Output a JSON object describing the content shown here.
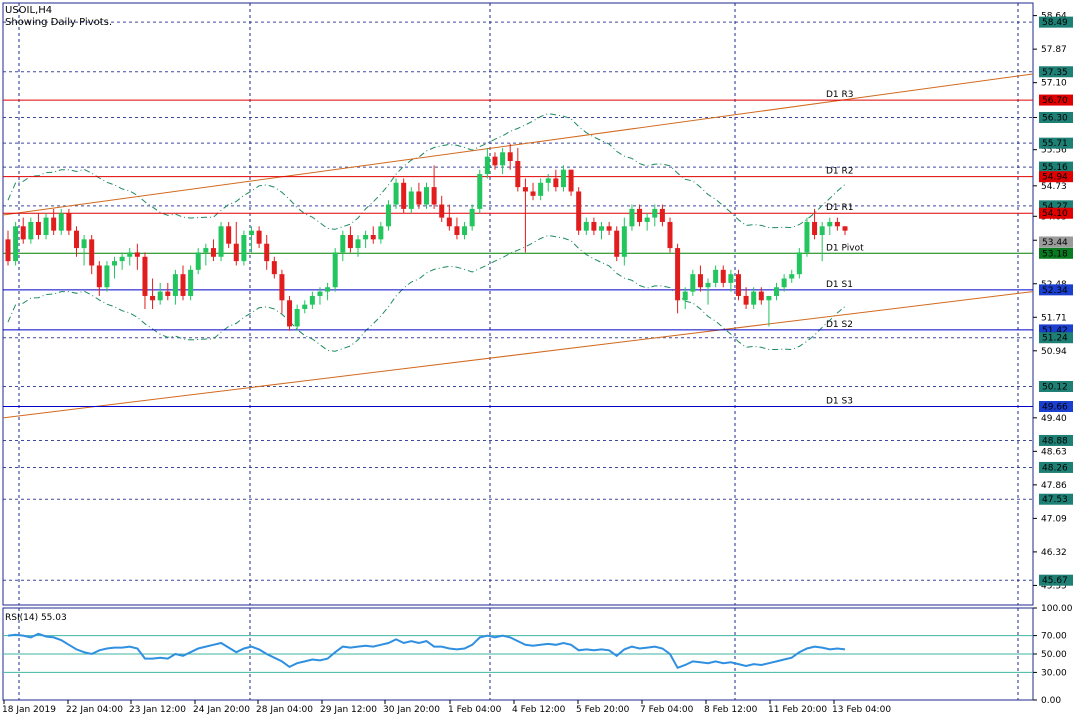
{
  "header": {
    "symbol": "USOIL,H4",
    "subtitle": "Showing Daily Pivots."
  },
  "colors": {
    "bull": "#22c55e",
    "bear": "#e11d1d",
    "grid": "#1e2a8c",
    "frame": "#1e2a8c",
    "pivot_red": "#e00000",
    "pivot_blue": "#0000cc",
    "pivot_green": "#008000",
    "trend": "#d2691e",
    "band": "#1e8a5e",
    "rsi_line": "#2f8fe0",
    "rsi_level": "#3fb4a4",
    "tag_teal": "#1e7f74",
    "tag_red": "#e00000",
    "tag_blue": "#1a3fcf",
    "tag_green": "#0a7a20"
  },
  "chart_data": {
    "type": "candlestick",
    "price_axis_ticks": [
      "58.64",
      "57.87",
      "57.10",
      "56.30",
      "55.56",
      "54.73",
      "54.03",
      "53.48",
      "52.48",
      "51.71",
      "50.94",
      "49.40",
      "48.63",
      "47.86",
      "47.09",
      "46.32",
      "45.55"
    ],
    "price_tags": [
      {
        "value": "58.49",
        "color": "teal"
      },
      {
        "value": "57.35",
        "color": "teal"
      },
      {
        "value": "56.70",
        "color": "red"
      },
      {
        "value": "56.30",
        "color": "teal"
      },
      {
        "value": "55.71",
        "color": "teal"
      },
      {
        "value": "55.16",
        "color": "teal"
      },
      {
        "value": "54.94",
        "color": "red"
      },
      {
        "value": "54.27",
        "color": "teal"
      },
      {
        "value": "54.10",
        "color": "red"
      },
      {
        "value": "53.44",
        "color": "gray"
      },
      {
        "value": "53.18",
        "color": "green"
      },
      {
        "value": "52.34",
        "color": "blue"
      },
      {
        "value": "51.42",
        "color": "blue"
      },
      {
        "value": "51.24",
        "color": "teal"
      },
      {
        "value": "50.12",
        "color": "teal"
      },
      {
        "value": "49.66",
        "color": "blue"
      },
      {
        "value": "48.88",
        "color": "teal"
      },
      {
        "value": "48.26",
        "color": "teal"
      },
      {
        "value": "47.53",
        "color": "teal"
      },
      {
        "value": "45.67",
        "color": "teal"
      }
    ],
    "pivots": [
      {
        "label": "D1 R3",
        "value": 56.7,
        "color": "red"
      },
      {
        "label": "D1 R2",
        "value": 54.94,
        "color": "red"
      },
      {
        "label": "D1 R1",
        "value": 54.1,
        "color": "red"
      },
      {
        "label": "D1 Pivot",
        "value": 53.18,
        "color": "green"
      },
      {
        "label": "D1 S1",
        "value": 52.34,
        "color": "blue"
      },
      {
        "label": "D1 S2",
        "value": 51.42,
        "color": "blue"
      },
      {
        "label": "D1 S3",
        "value": 49.66,
        "color": "blue"
      }
    ],
    "dashed_levels": [
      58.49,
      57.35,
      56.3,
      55.71,
      55.16,
      54.27,
      51.24,
      50.12,
      48.88,
      48.26,
      47.53,
      45.67
    ],
    "x_labels": [
      "18 Jan 2019",
      "22 Jan 04:00",
      "23 Jan 12:00",
      "24 Jan 20:00",
      "28 Jan 04:00",
      "29 Jan 12:00",
      "30 Jan 20:00",
      "1 Feb 04:00",
      "4 Feb 12:00",
      "5 Feb 20:00",
      "7 Feb 04:00",
      "8 Feb 12:00",
      "11 Feb 20:00",
      "13 Feb 04:00"
    ],
    "candles": [
      [
        53.5,
        53.7,
        52.9,
        53.0
      ],
      [
        53.0,
        53.9,
        52.9,
        53.8
      ],
      [
        53.8,
        54.0,
        53.4,
        53.5
      ],
      [
        53.5,
        54.0,
        53.4,
        53.9
      ],
      [
        53.9,
        54.1,
        53.5,
        53.6
      ],
      [
        53.6,
        54.1,
        53.5,
        54.0
      ],
      [
        54.0,
        54.2,
        53.6,
        53.7
      ],
      [
        53.7,
        54.2,
        53.6,
        54.1
      ],
      [
        54.1,
        54.2,
        53.6,
        53.7
      ],
      [
        53.7,
        53.8,
        53.1,
        53.3
      ],
      [
        53.3,
        53.6,
        52.9,
        53.5
      ],
      [
        53.5,
        53.6,
        52.7,
        52.9
      ],
      [
        52.9,
        53.0,
        52.2,
        52.4
      ],
      [
        52.4,
        53.0,
        52.3,
        52.9
      ],
      [
        52.9,
        53.1,
        52.6,
        53.0
      ],
      [
        53.0,
        53.2,
        52.8,
        53.1
      ],
      [
        53.1,
        53.3,
        52.9,
        53.2
      ],
      [
        53.2,
        53.4,
        52.8,
        53.1
      ],
      [
        53.1,
        53.2,
        51.9,
        52.2
      ],
      [
        52.2,
        52.6,
        51.9,
        52.1
      ],
      [
        52.1,
        52.5,
        52.0,
        52.3
      ],
      [
        52.3,
        52.5,
        52.1,
        52.2
      ],
      [
        52.2,
        52.8,
        52.0,
        52.7
      ],
      [
        52.7,
        52.9,
        52.1,
        52.2
      ],
      [
        52.2,
        52.9,
        52.1,
        52.8
      ],
      [
        52.8,
        53.3,
        52.7,
        53.2
      ],
      [
        53.2,
        53.4,
        52.9,
        53.3
      ],
      [
        53.3,
        53.5,
        53.0,
        53.1
      ],
      [
        53.1,
        53.9,
        53.0,
        53.8
      ],
      [
        53.8,
        53.9,
        53.3,
        53.4
      ],
      [
        53.4,
        53.9,
        52.9,
        53.0
      ],
      [
        53.0,
        53.7,
        52.9,
        53.6
      ],
      [
        53.6,
        53.8,
        53.2,
        53.7
      ],
      [
        53.7,
        53.8,
        53.3,
        53.4
      ],
      [
        53.4,
        53.6,
        52.8,
        53.0
      ],
      [
        53.0,
        53.1,
        52.6,
        52.7
      ],
      [
        52.7,
        52.8,
        51.8,
        52.1
      ],
      [
        52.1,
        52.2,
        51.4,
        51.5
      ],
      [
        51.5,
        52.0,
        51.4,
        51.9
      ],
      [
        51.9,
        52.1,
        51.8,
        52.0
      ],
      [
        52.0,
        52.3,
        51.9,
        52.2
      ],
      [
        52.2,
        52.4,
        52.0,
        52.3
      ],
      [
        52.3,
        52.5,
        52.1,
        52.4
      ],
      [
        52.4,
        53.3,
        52.3,
        53.2
      ],
      [
        53.2,
        53.7,
        53.0,
        53.6
      ],
      [
        53.6,
        53.8,
        53.2,
        53.3
      ],
      [
        53.3,
        53.6,
        53.1,
        53.5
      ],
      [
        53.5,
        53.7,
        53.3,
        53.6
      ],
      [
        53.6,
        53.8,
        53.4,
        53.5
      ],
      [
        53.5,
        53.9,
        53.4,
        53.8
      ],
      [
        53.8,
        54.4,
        53.7,
        54.3
      ],
      [
        54.3,
        54.9,
        54.2,
        54.8
      ],
      [
        54.8,
        54.9,
        54.1,
        54.2
      ],
      [
        54.2,
        54.7,
        54.1,
        54.6
      ],
      [
        54.6,
        54.8,
        54.2,
        54.3
      ],
      [
        54.3,
        54.8,
        54.2,
        54.7
      ],
      [
        54.7,
        55.2,
        54.2,
        54.3
      ],
      [
        54.3,
        54.5,
        53.9,
        54.0
      ],
      [
        54.0,
        54.3,
        53.7,
        53.8
      ],
      [
        53.8,
        54.0,
        53.5,
        53.6
      ],
      [
        53.6,
        53.9,
        53.5,
        53.8
      ],
      [
        53.8,
        54.3,
        53.7,
        54.2
      ],
      [
        54.2,
        55.1,
        54.1,
        55.0
      ],
      [
        55.0,
        55.6,
        54.9,
        55.4
      ],
      [
        55.4,
        55.5,
        55.1,
        55.2
      ],
      [
        55.2,
        55.6,
        55.0,
        55.5
      ],
      [
        55.5,
        55.7,
        55.1,
        55.3
      ],
      [
        55.3,
        55.6,
        54.6,
        54.7
      ],
      [
        54.7,
        54.9,
        53.2,
        54.6
      ],
      [
        54.6,
        54.8,
        54.4,
        54.5
      ],
      [
        54.5,
        54.9,
        54.4,
        54.8
      ],
      [
        54.8,
        55.0,
        54.6,
        54.9
      ],
      [
        54.9,
        55.1,
        54.6,
        54.7
      ],
      [
        54.7,
        55.2,
        54.6,
        55.1
      ],
      [
        55.1,
        55.1,
        54.5,
        54.6
      ],
      [
        54.6,
        54.7,
        53.6,
        53.7
      ],
      [
        53.7,
        54.0,
        53.6,
        53.9
      ],
      [
        53.9,
        54.0,
        53.6,
        53.7
      ],
      [
        53.7,
        53.9,
        53.5,
        53.8
      ],
      [
        53.8,
        53.9,
        53.6,
        53.7
      ],
      [
        53.7,
        53.8,
        53.0,
        53.1
      ],
      [
        53.1,
        54.0,
        52.9,
        53.8
      ],
      [
        53.8,
        54.3,
        53.7,
        54.2
      ],
      [
        54.2,
        54.3,
        53.8,
        53.9
      ],
      [
        53.9,
        54.1,
        53.7,
        54.0
      ],
      [
        54.0,
        54.3,
        53.8,
        54.2
      ],
      [
        54.2,
        54.3,
        53.8,
        53.9
      ],
      [
        53.9,
        54.0,
        53.2,
        53.3
      ],
      [
        53.3,
        53.4,
        51.8,
        52.1
      ],
      [
        52.1,
        52.4,
        51.9,
        52.3
      ],
      [
        52.3,
        52.8,
        52.2,
        52.7
      ],
      [
        52.7,
        52.9,
        52.3,
        52.4
      ],
      [
        52.4,
        52.6,
        52.0,
        52.5
      ],
      [
        52.5,
        52.9,
        52.4,
        52.8
      ],
      [
        52.8,
        52.9,
        52.4,
        52.5
      ],
      [
        52.5,
        52.8,
        52.3,
        52.7
      ],
      [
        52.7,
        52.8,
        52.1,
        52.2
      ],
      [
        52.2,
        52.4,
        51.9,
        52.0
      ],
      [
        52.0,
        52.4,
        51.9,
        52.3
      ],
      [
        52.3,
        52.4,
        52.0,
        52.1
      ],
      [
        52.1,
        52.2,
        51.5,
        52.2
      ],
      [
        52.2,
        52.5,
        52.1,
        52.4
      ],
      [
        52.4,
        52.7,
        52.3,
        52.6
      ],
      [
        52.6,
        52.8,
        52.5,
        52.7
      ],
      [
        52.7,
        53.3,
        52.6,
        53.2
      ],
      [
        53.2,
        54.0,
        53.1,
        53.9
      ],
      [
        53.9,
        54.2,
        53.5,
        53.6
      ],
      [
        53.6,
        53.9,
        53.0,
        53.8
      ],
      [
        53.8,
        54.0,
        53.6,
        53.9
      ],
      [
        53.9,
        54.0,
        53.7,
        53.8
      ],
      [
        53.8,
        53.8,
        53.6,
        53.7
      ]
    ],
    "rsi": {
      "label": "RSI(14) 55.03",
      "value": 55.03,
      "levels": [
        70,
        50,
        30
      ],
      "ticks": [
        "100.00",
        "70.00",
        "50.00",
        "30.00",
        "0.00"
      ],
      "values": [
        70,
        71,
        70,
        68,
        72,
        69,
        68,
        65,
        60,
        55,
        52,
        50,
        54,
        56,
        57,
        57,
        58,
        56,
        45,
        45,
        46,
        45,
        50,
        48,
        52,
        56,
        58,
        60,
        62,
        57,
        52,
        56,
        58,
        55,
        50,
        46,
        42,
        36,
        40,
        42,
        44,
        43,
        45,
        52,
        58,
        57,
        58,
        59,
        58,
        60,
        62,
        66,
        62,
        64,
        62,
        64,
        58,
        58,
        56,
        55,
        56,
        60,
        68,
        70,
        68,
        70,
        68,
        64,
        60,
        59,
        60,
        61,
        60,
        62,
        60,
        54,
        55,
        54,
        55,
        54,
        48,
        55,
        58,
        56,
        57,
        58,
        56,
        50,
        35,
        38,
        42,
        41,
        40,
        42,
        40,
        41,
        39,
        37,
        39,
        38,
        40,
        42,
        44,
        46,
        52,
        56,
        58,
        57,
        55,
        56,
        55
      ]
    }
  }
}
